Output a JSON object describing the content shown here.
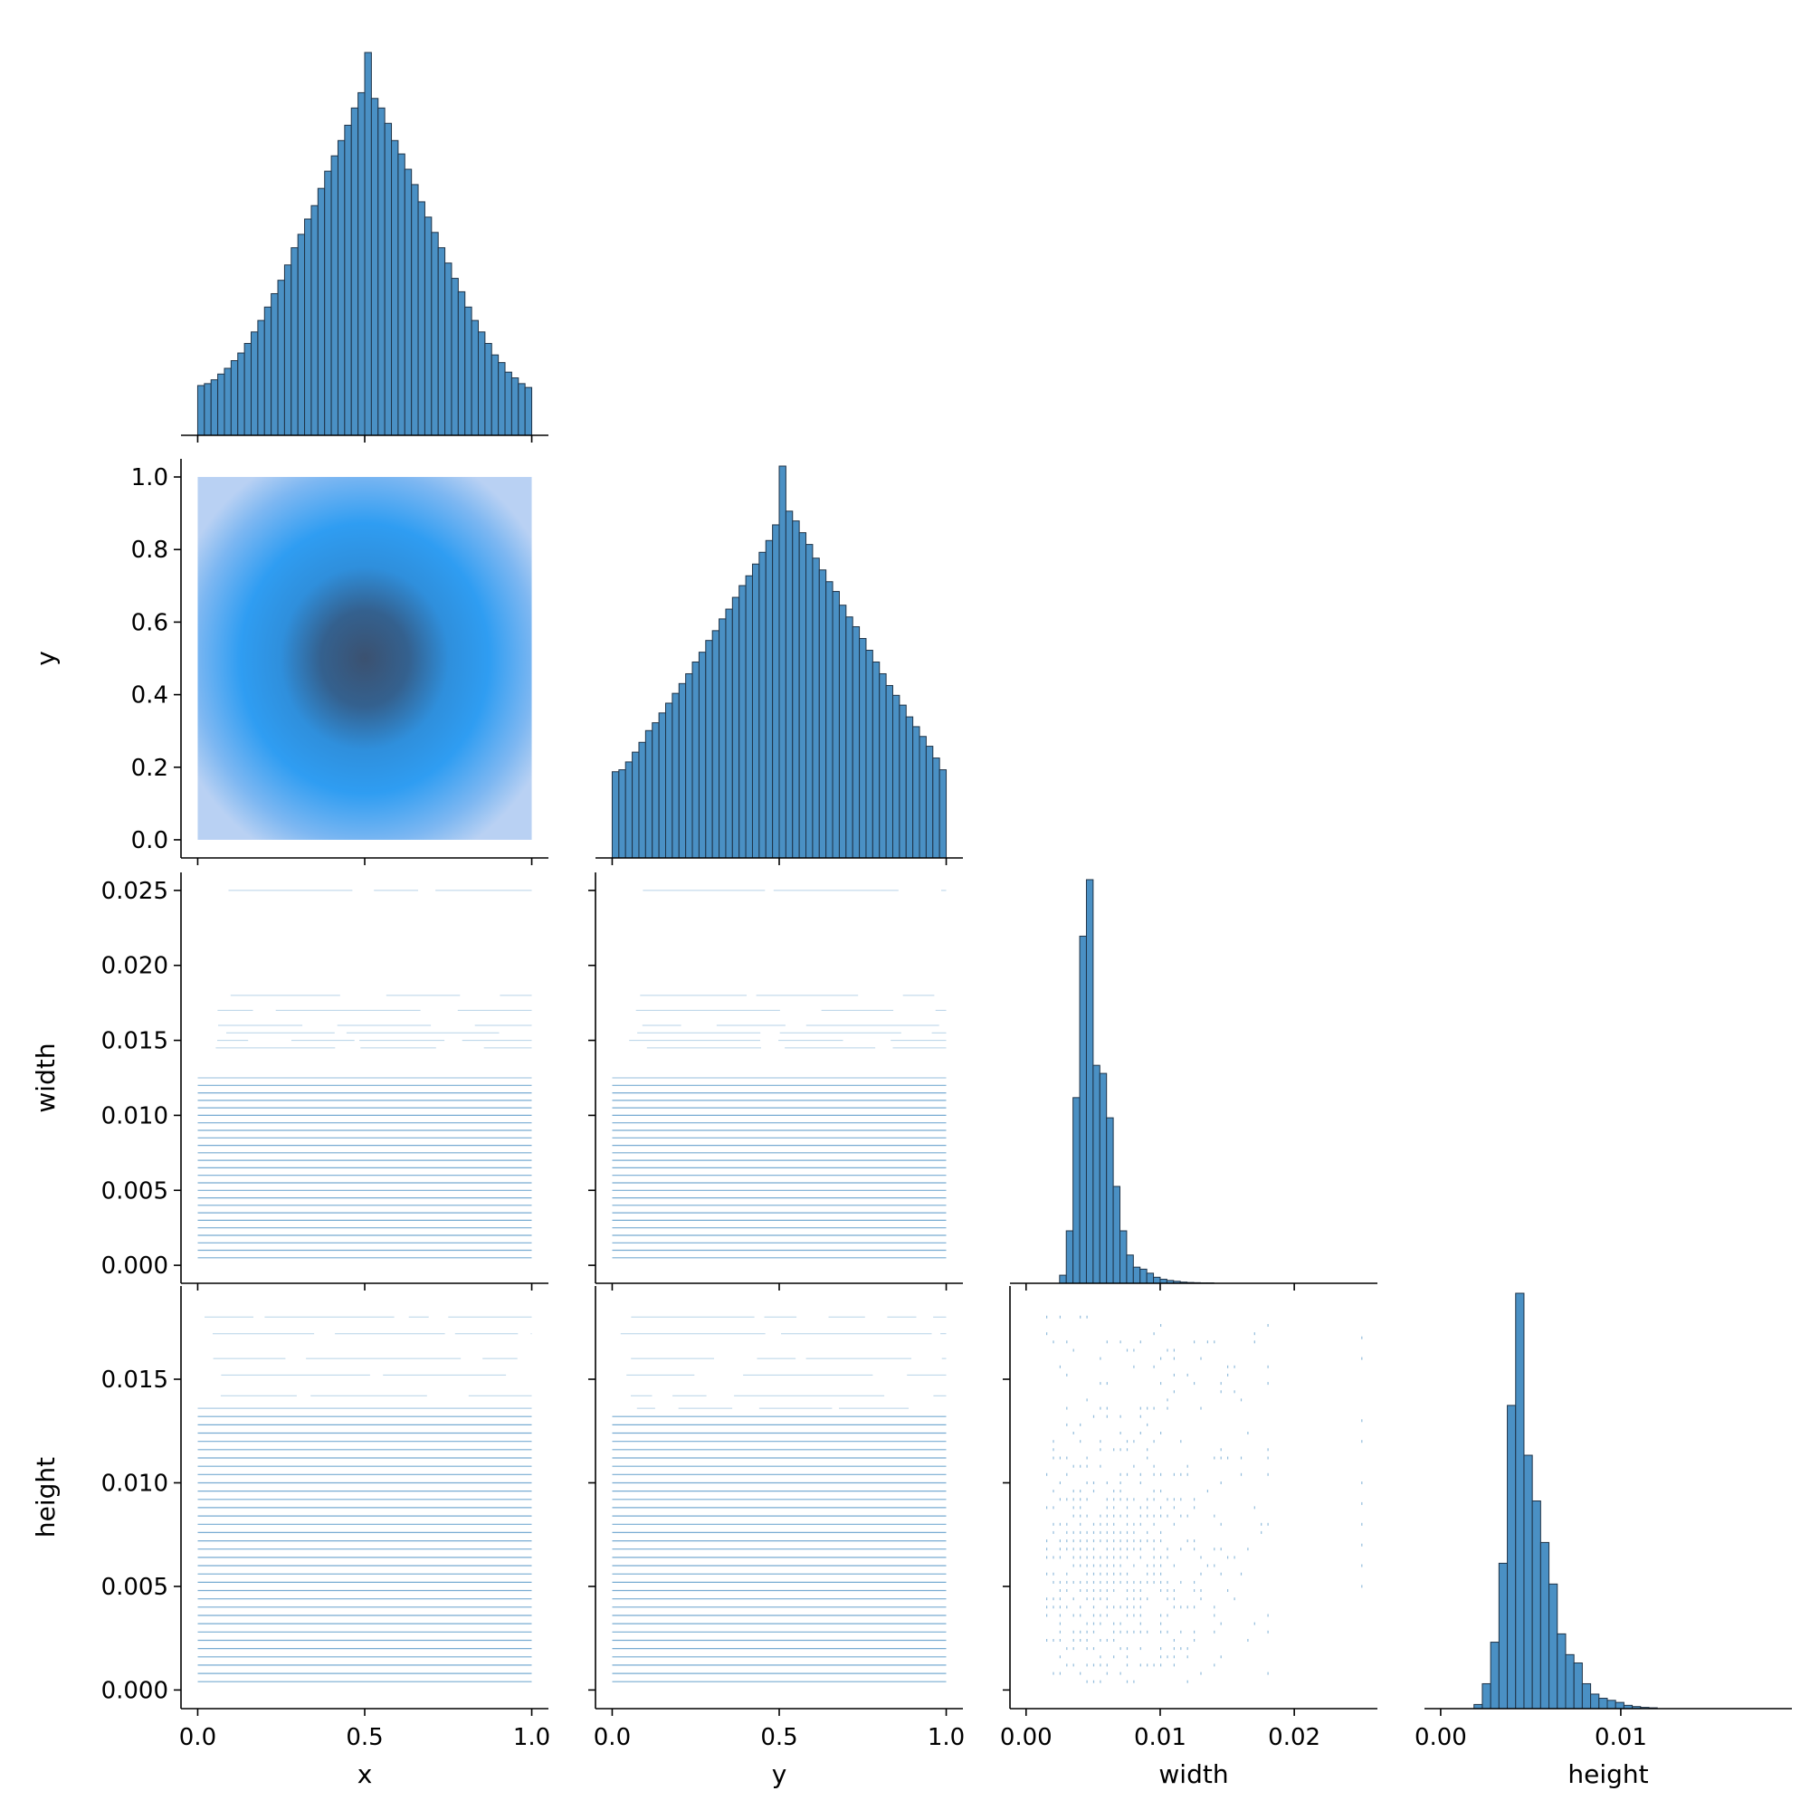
{
  "chart_data": {
    "type": "pairplot",
    "variables": [
      "x",
      "y",
      "width",
      "height"
    ],
    "colors": {
      "hist_fill": "#4a90c4",
      "hist_edge": "#1f3347",
      "scatter": "#4a90c4",
      "density_light": "#b9d1f3",
      "density_mid": "#2f9df2",
      "density_dark": "#3b5170"
    },
    "axes": {
      "x": {
        "label": "x",
        "ticks": [
          0.0,
          0.5,
          1.0
        ],
        "tick_labels": [
          "0.0",
          "0.5",
          "1.0"
        ],
        "range": [
          -0.05,
          1.05
        ]
      },
      "y": {
        "label": "y",
        "ticks": [
          0.0,
          0.2,
          0.4,
          0.6,
          0.8,
          1.0
        ],
        "tick_labels": [
          "0.0",
          "0.2",
          "0.4",
          "0.6",
          "0.8",
          "1.0"
        ],
        "range": [
          -0.05,
          1.05
        ],
        "x_ticks": [
          0.0,
          0.5,
          1.0
        ],
        "x_tick_labels": [
          "0.0",
          "0.5",
          "1.0"
        ]
      },
      "width": {
        "label": "width",
        "ticks": [
          0.0,
          0.005,
          0.01,
          0.015,
          0.02,
          0.025
        ],
        "tick_labels": [
          "0.000",
          "0.005",
          "0.010",
          "0.015",
          "0.020",
          "0.025"
        ],
        "range": [
          -0.0012,
          0.0262
        ],
        "x_ticks": [
          0.0,
          0.01,
          0.02
        ],
        "x_tick_labels": [
          "0.00",
          "0.01",
          "0.02"
        ]
      },
      "height": {
        "label": "height",
        "ticks": [
          0.0,
          0.005,
          0.01,
          0.015
        ],
        "tick_labels": [
          "0.000",
          "0.005",
          "0.010",
          "0.015"
        ],
        "range": [
          -0.0009,
          0.0195
        ],
        "x_ticks": [
          0.0,
          0.01
        ],
        "x_tick_labels": [
          "0.00",
          "0.01"
        ]
      }
    },
    "diagonal_histograms": {
      "x": {
        "bins": 50,
        "range": [
          0.0,
          1.0
        ],
        "relative_counts": [
          0.13,
          0.135,
          0.145,
          0.16,
          0.175,
          0.195,
          0.215,
          0.24,
          0.27,
          0.3,
          0.335,
          0.37,
          0.405,
          0.445,
          0.49,
          0.525,
          0.565,
          0.6,
          0.645,
          0.69,
          0.73,
          0.77,
          0.81,
          0.855,
          0.895,
          1.0,
          0.88,
          0.855,
          0.815,
          0.77,
          0.735,
          0.695,
          0.655,
          0.61,
          0.57,
          0.53,
          0.49,
          0.45,
          0.41,
          0.375,
          0.335,
          0.3,
          0.27,
          0.24,
          0.21,
          0.19,
          0.165,
          0.15,
          0.135,
          0.125
        ]
      },
      "y": {
        "bins": 50,
        "range": [
          0.0,
          1.0
        ],
        "relative_counts": [
          0.22,
          0.225,
          0.245,
          0.27,
          0.295,
          0.325,
          0.345,
          0.37,
          0.395,
          0.42,
          0.445,
          0.47,
          0.5,
          0.525,
          0.555,
          0.58,
          0.61,
          0.635,
          0.665,
          0.695,
          0.72,
          0.75,
          0.78,
          0.81,
          0.85,
          1.0,
          0.885,
          0.86,
          0.83,
          0.8,
          0.765,
          0.735,
          0.705,
          0.68,
          0.645,
          0.615,
          0.59,
          0.56,
          0.53,
          0.5,
          0.47,
          0.44,
          0.415,
          0.39,
          0.36,
          0.335,
          0.31,
          0.285,
          0.255,
          0.225
        ]
      },
      "width": {
        "bins": 50,
        "range": [
          0.0,
          0.025
        ],
        "relative_counts": [
          0,
          0,
          0,
          0,
          0,
          0.02,
          0.13,
          0.46,
          0.86,
          1.0,
          0.54,
          0.52,
          0.41,
          0.24,
          0.13,
          0.07,
          0.04,
          0.035,
          0.025,
          0.015,
          0.01,
          0.007,
          0.005,
          0.003,
          0.002,
          0.0015,
          0.001,
          0.001,
          0,
          0,
          0,
          0,
          0,
          0,
          0,
          0,
          0,
          0,
          0,
          0,
          0,
          0,
          0,
          0,
          0,
          0,
          0,
          0,
          0,
          0
        ]
      },
      "height": {
        "bins": 40,
        "range": [
          0.0,
          0.0185
        ],
        "relative_counts": [
          0,
          0,
          0,
          0,
          0.01,
          0.06,
          0.16,
          0.35,
          0.73,
          1.0,
          0.61,
          0.5,
          0.4,
          0.3,
          0.18,
          0.13,
          0.11,
          0.06,
          0.035,
          0.025,
          0.02,
          0.015,
          0.008,
          0.005,
          0.003,
          0.002,
          0,
          0,
          0,
          0,
          0,
          0,
          0,
          0,
          0,
          0,
          0,
          0,
          0,
          0
        ]
      }
    },
    "density_panel": {
      "row": "y",
      "col": "x",
      "peak": [
        0.5,
        0.5
      ]
    }
  }
}
